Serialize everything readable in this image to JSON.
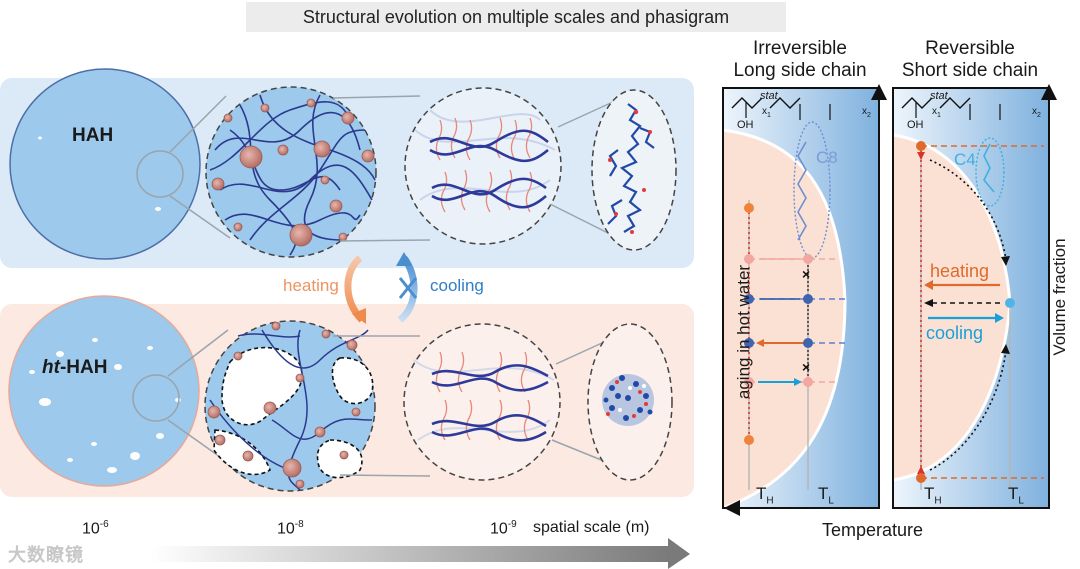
{
  "title": "Structural evolution on multiple scales and phasigram",
  "top_panel": {
    "label": "HAH"
  },
  "bottom_panel": {
    "label_italic": "ht",
    "label_rest": "-HAH"
  },
  "transitions": {
    "heating": "heating",
    "cooling": "cooling"
  },
  "scale": {
    "ticks": [
      {
        "base": "10",
        "exp": "-6"
      },
      {
        "base": "10",
        "exp": "-8"
      },
      {
        "base": "10",
        "exp": "-9"
      }
    ],
    "axis_label": "spatial scale (m)"
  },
  "phasigram_left": {
    "header_line1": "Irreversible",
    "header_line2": "Long side chain",
    "chain_label": "C8",
    "vertical_label": "aging in hot water",
    "formula": {
      "oh": "OH",
      "stat": "stat",
      "x1": "x",
      "x1_sub": "1",
      "x2": "x",
      "x2_sub": "2"
    }
  },
  "phasigram_right": {
    "header_line1": "Reversible",
    "header_line2": "Short side chain",
    "chain_label": "C4",
    "heating": "heating",
    "cooling": "cooling",
    "formula": {
      "oh": "OH",
      "stat": "stat",
      "x1": "x",
      "x1_sub": "1",
      "x2": "x",
      "x2_sub": "2"
    }
  },
  "axes": {
    "x_label": "Temperature",
    "y_label": "Volume fraction",
    "th": "T",
    "th_sub": "H",
    "tl": "T",
    "tl_sub": "L"
  },
  "watermark": "大数瞭镜",
  "colors": {
    "blue_bg": "#dceaf7",
    "pink_bg": "#fbe9e2",
    "circle_blue": "#9cc9ec",
    "chain_blue": "#2b3a8f",
    "orange": "#e06a2b",
    "cyan": "#1aa0d8"
  }
}
